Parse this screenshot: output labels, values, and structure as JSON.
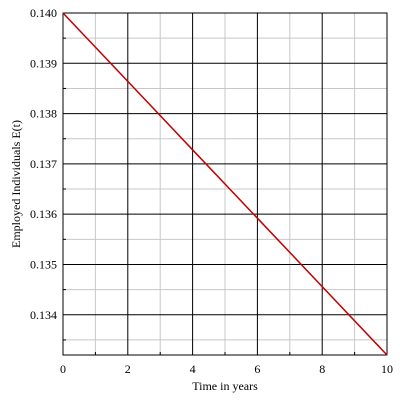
{
  "chart_data": {
    "type": "line",
    "x_label": "Time in years",
    "y_label": "Employed Individuals E(t)",
    "x": [
      0,
      2,
      4,
      6,
      8,
      10
    ],
    "series": [
      {
        "color": "#c00000",
        "values": [
          0.14,
          0.13864,
          0.13728,
          0.13592,
          0.13456,
          0.1332
        ]
      }
    ],
    "xlim": [
      0,
      10
    ],
    "xticks": [
      0,
      2,
      4,
      6,
      8,
      10
    ],
    "ylim": [
      0.1332,
      0.14
    ],
    "yticks": [
      0.134,
      0.135,
      0.136,
      0.137,
      0.138,
      0.139,
      {
        "value": 0.14,
        "label": "0.140"
      }
    ],
    "grid": true
  }
}
